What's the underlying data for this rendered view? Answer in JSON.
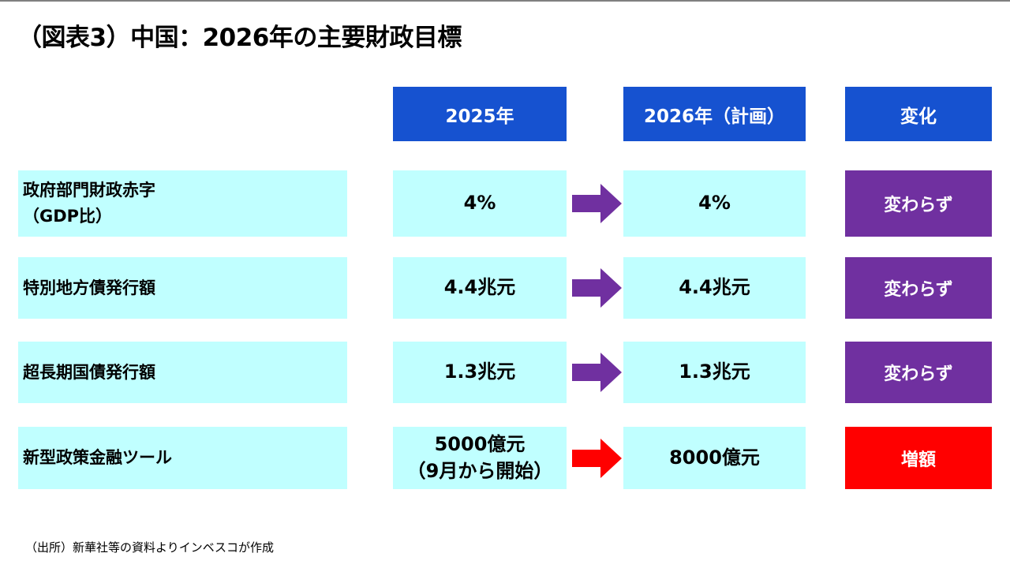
{
  "title": "（図表3）中国：2026年の主要財政目標",
  "headers": {
    "col1": "2025年",
    "col2": "2026年（計画）",
    "col3": "変化"
  },
  "rows": [
    {
      "label": "政府部門財政赤字\n（GDP比）",
      "y2025": "4%",
      "y2026": "4%",
      "change": "変わらず",
      "change_color": "#7030A0",
      "arrow_color": "#7030A0"
    },
    {
      "label": "特別地方債発行額",
      "y2025": "4.4兆元",
      "y2026": "4.4兆元",
      "change": "変わらず",
      "change_color": "#7030A0",
      "arrow_color": "#7030A0"
    },
    {
      "label": "超長期国債発行額",
      "y2025": "1.3兆元",
      "y2026": "1.3兆元",
      "change": "変わらず",
      "change_color": "#7030A0",
      "arrow_color": "#7030A0"
    },
    {
      "label": "新型政策金融ツール",
      "y2025": "5000億元\n（9月から開始）",
      "y2026": "8000億元",
      "change": "増額",
      "change_color": "#FF0000",
      "arrow_color": "#FF0000"
    }
  ],
  "source": "（出所）新華社等の資料よりインベスコが作成",
  "colors": {
    "header": "#1652D0",
    "cell": "#C0FFFF"
  }
}
